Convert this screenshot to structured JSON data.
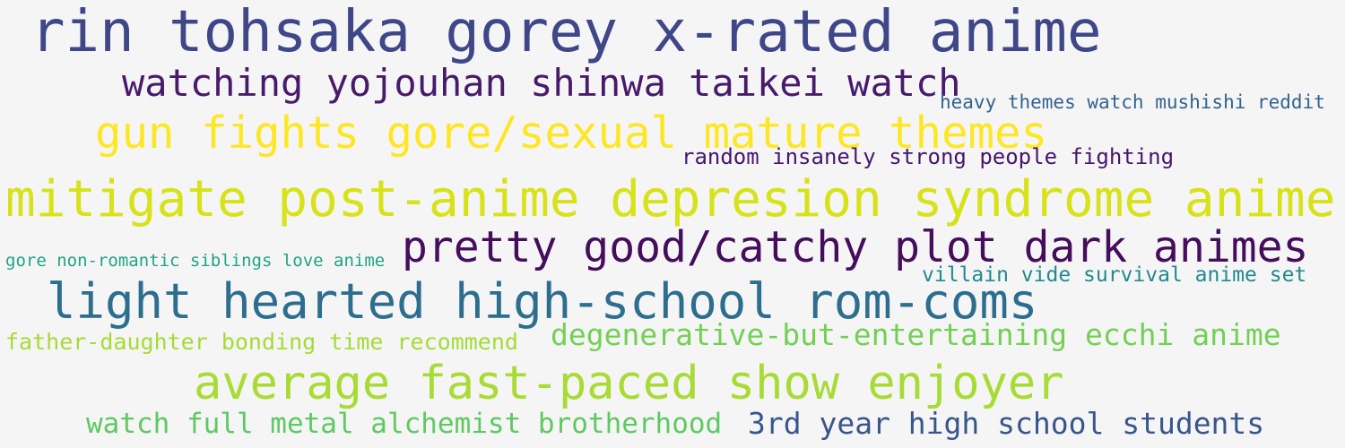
{
  "phrases": [
    {
      "text": "rin tohsaka gorey x-rated anime",
      "color": "#3f4788"
    },
    {
      "text": "watching yojouhan shinwa taikei watch",
      "color": "#481a6c"
    },
    {
      "text": "heavy themes watch mushishi reddit",
      "color": "#33638d"
    },
    {
      "text": "gun fights gore/sexual mature themes",
      "color": "#fde725"
    },
    {
      "text": "random insanely strong people fighting",
      "color": "#46166b"
    },
    {
      "text": "mitigate post-anime depresion syndrome anime",
      "color": "#d8e219"
    },
    {
      "text": "pretty good/catchy plot dark animes",
      "color": "#450d5c"
    },
    {
      "text": "gore non-romantic siblings love anime",
      "color": "#21a386"
    },
    {
      "text": "villain vide survival anime set",
      "color": "#228a8d"
    },
    {
      "text": "light hearted high-school rom-coms",
      "color": "#2d6e8e"
    },
    {
      "text": "degenerative-but-entertaining ecchi anime",
      "color": "#73d055"
    },
    {
      "text": "father-daughter bonding time recommend",
      "color": "#a5db36"
    },
    {
      "text": "average fast-paced show enjoyer",
      "color": "#a8db34"
    },
    {
      "text": "watch full metal alchemist brotherhood",
      "color": "#5ec962"
    },
    {
      "text": "3rd year high school students",
      "color": "#39568c"
    }
  ]
}
